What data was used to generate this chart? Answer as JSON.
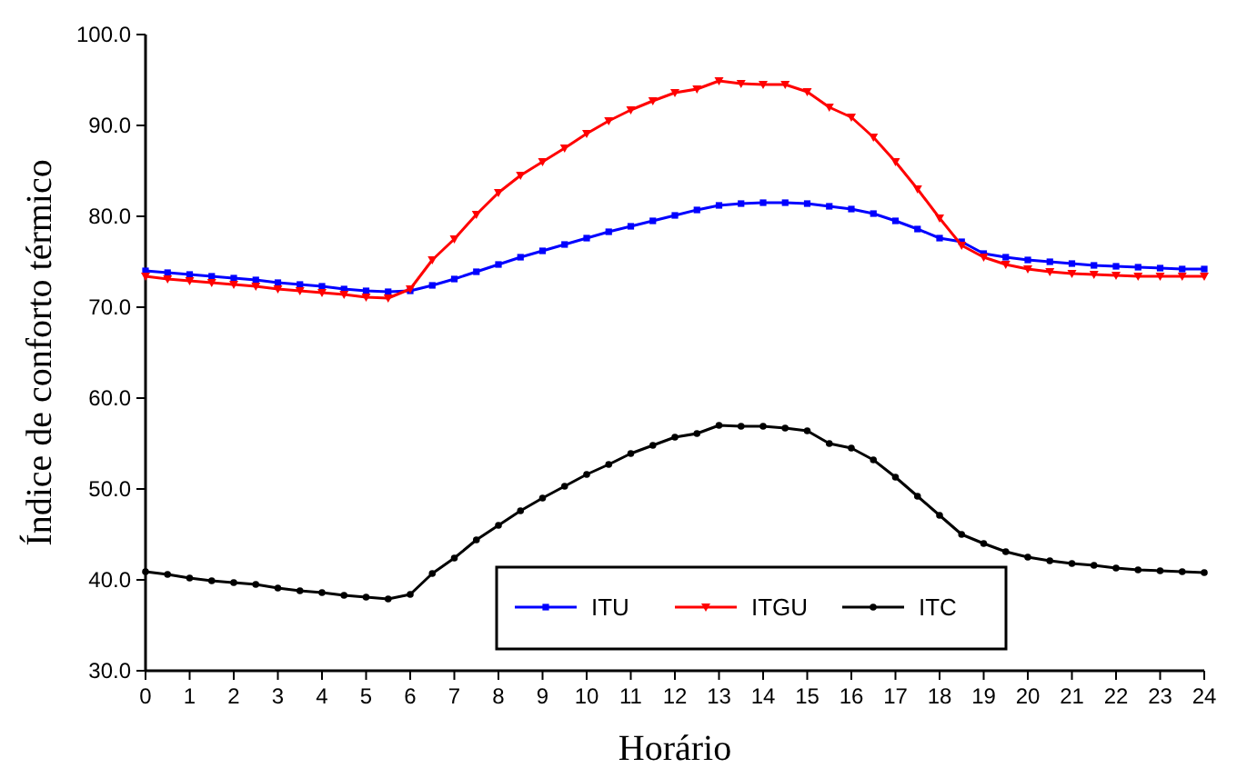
{
  "chart_data": {
    "type": "line",
    "xlabel": "Horário",
    "ylabel": "Índice de conforto térmico",
    "x": [
      0,
      0.5,
      1,
      1.5,
      2,
      2.5,
      3,
      3.5,
      4,
      4.5,
      5,
      5.5,
      6,
      6.5,
      7,
      7.5,
      8,
      8.5,
      9,
      9.5,
      10,
      10.5,
      11,
      11.5,
      12,
      12.5,
      13,
      13.5,
      14,
      14.5,
      15,
      15.5,
      16,
      16.5,
      17,
      17.5,
      18,
      18.5,
      19,
      19.5,
      20,
      20.5,
      21,
      21.5,
      22,
      22.5,
      23,
      23.5,
      24
    ],
    "xlim": [
      0,
      24
    ],
    "xticks": [
      0,
      1,
      2,
      3,
      4,
      5,
      6,
      7,
      8,
      9,
      10,
      11,
      12,
      13,
      14,
      15,
      16,
      17,
      18,
      19,
      20,
      21,
      22,
      23,
      24
    ],
    "ylim": [
      30,
      100
    ],
    "yticks": [
      {
        "value": 30,
        "label": "30.0"
      },
      {
        "value": 40,
        "label": "40.0"
      },
      {
        "value": 50,
        "label": "50.0"
      },
      {
        "value": 60,
        "label": "60.0"
      },
      {
        "value": 70,
        "label": "70.0"
      },
      {
        "value": 80,
        "label": "80.0"
      },
      {
        "value": 90,
        "label": "90.0"
      },
      {
        "value": 100,
        "label": "100.0"
      }
    ],
    "grid": false,
    "legend": "bottom",
    "line_style": "solid",
    "series": [
      {
        "name": "ITU",
        "color": "#0000ff",
        "marker": "square",
        "values": [
          74.0,
          73.8,
          73.6,
          73.4,
          73.2,
          73.0,
          72.7,
          72.5,
          72.3,
          72.0,
          71.8,
          71.7,
          71.8,
          72.4,
          73.1,
          73.9,
          74.7,
          75.5,
          76.2,
          76.9,
          77.6,
          78.3,
          78.9,
          79.5,
          80.1,
          80.7,
          81.2,
          81.4,
          81.5,
          81.5,
          81.4,
          81.1,
          80.8,
          80.3,
          79.5,
          78.6,
          77.6,
          77.2,
          75.9,
          75.5,
          75.2,
          75.0,
          74.8,
          74.6,
          74.5,
          74.4,
          74.3,
          74.2,
          74.2
        ]
      },
      {
        "name": "ITGU",
        "color": "#ff0000",
        "marker": "triangle",
        "values": [
          73.4,
          73.1,
          72.9,
          72.7,
          72.5,
          72.3,
          72.0,
          71.8,
          71.6,
          71.4,
          71.1,
          71.0,
          72.0,
          75.2,
          77.5,
          80.2,
          82.6,
          84.5,
          86.0,
          87.5,
          89.1,
          90.5,
          91.7,
          92.7,
          93.6,
          94.0,
          94.9,
          94.6,
          94.5,
          94.5,
          93.7,
          92.0,
          90.9,
          88.7,
          86.0,
          83.0,
          79.8,
          76.8,
          75.5,
          74.7,
          74.2,
          73.9,
          73.7,
          73.6,
          73.5,
          73.4,
          73.4,
          73.4,
          73.4
        ]
      },
      {
        "name": "ITC",
        "color": "#000000",
        "marker": "circle",
        "values": [
          40.9,
          40.6,
          40.2,
          39.9,
          39.7,
          39.5,
          39.1,
          38.8,
          38.6,
          38.3,
          38.1,
          37.9,
          38.4,
          40.7,
          42.4,
          44.4,
          46.0,
          47.6,
          49.0,
          50.3,
          51.6,
          52.7,
          53.9,
          54.8,
          55.7,
          56.1,
          57.0,
          56.9,
          56.9,
          56.7,
          56.4,
          55.0,
          54.5,
          53.2,
          51.3,
          49.2,
          47.1,
          45.0,
          44.0,
          43.1,
          42.5,
          42.1,
          41.8,
          41.6,
          41.3,
          41.1,
          41.0,
          40.9,
          40.8
        ]
      }
    ]
  }
}
